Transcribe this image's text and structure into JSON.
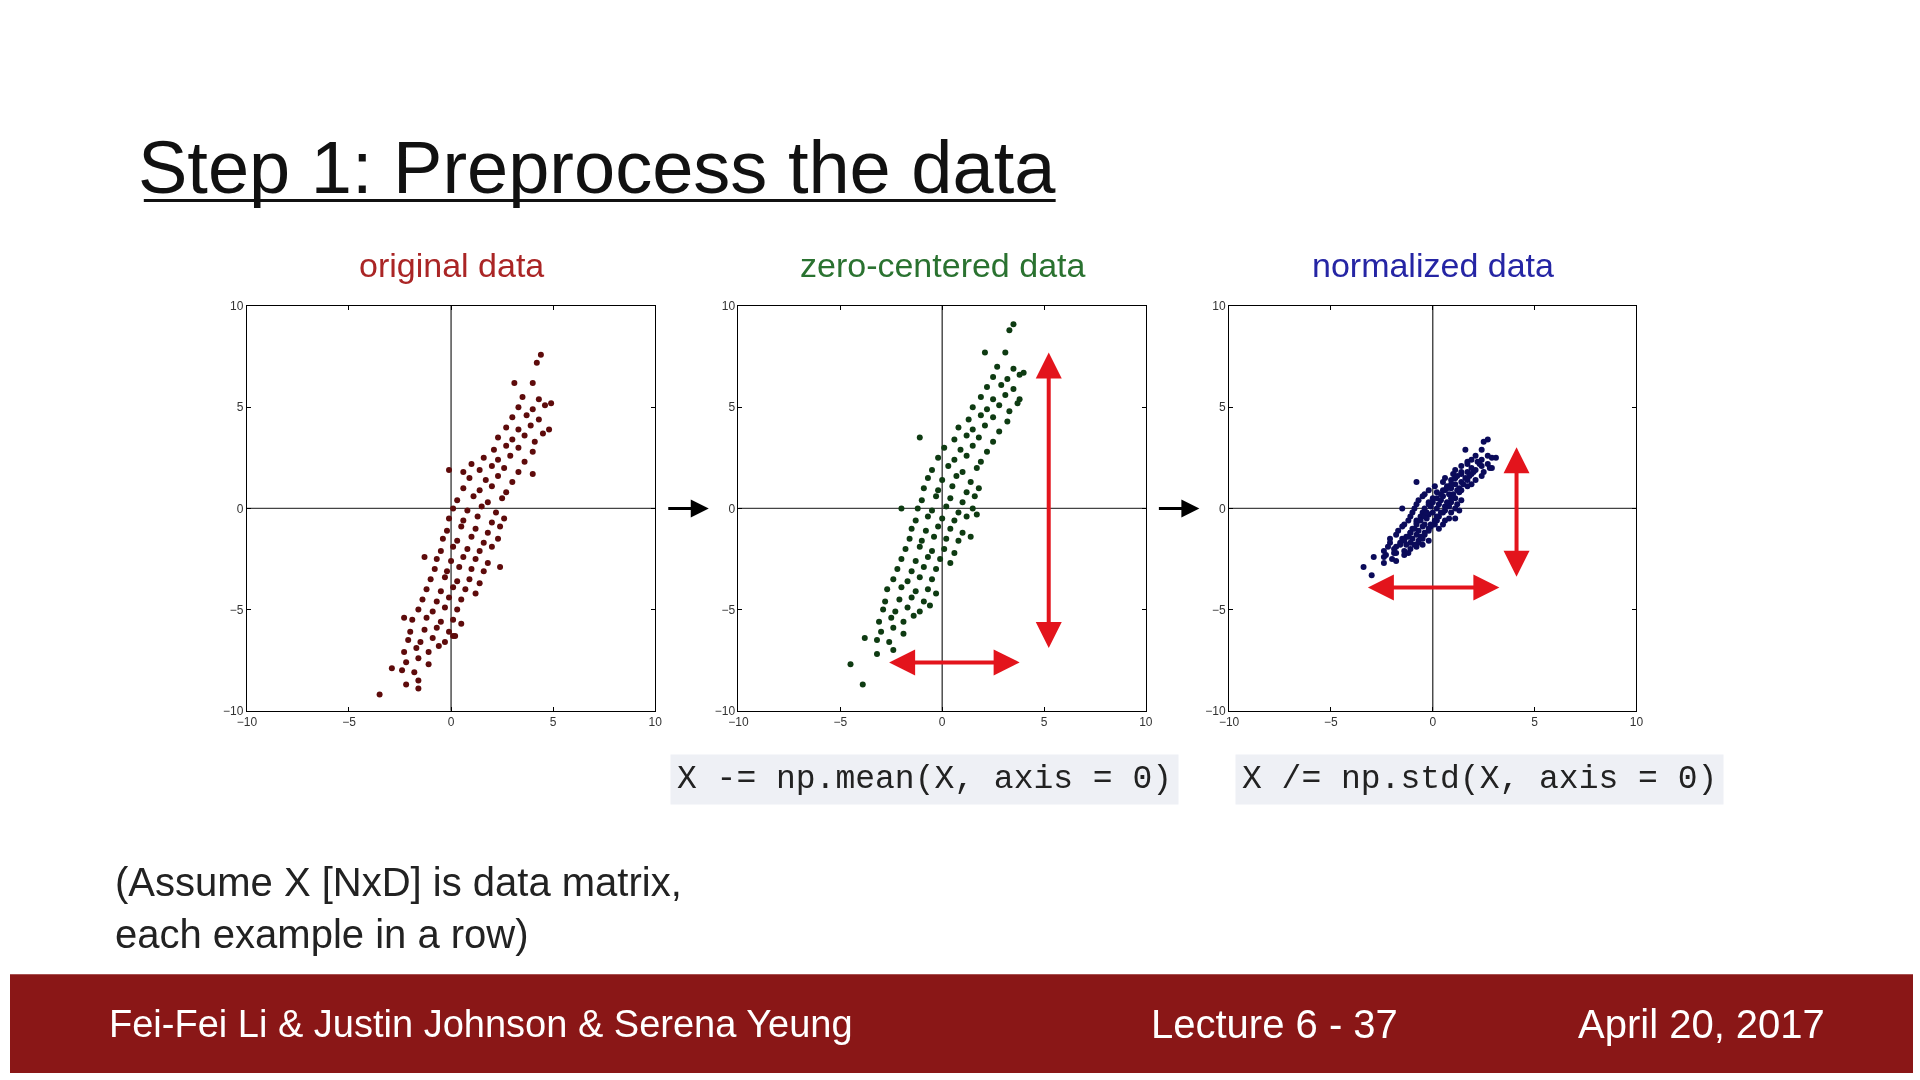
{
  "chart_data": [
    {
      "type": "other",
      "title": "Step 1: Preprocess the data"
    },
    {
      "type": "scatter",
      "title": "original data",
      "xlim": [
        -10,
        10
      ],
      "ylim": [
        -10,
        10
      ],
      "xticks": [
        -10,
        -5,
        0,
        5,
        10
      ],
      "yticks": [
        -10,
        -5,
        0,
        5,
        10
      ],
      "marker": "circle",
      "color": "#5e0b0b",
      "ref_lines": [
        {
          "axis": "x",
          "value": 0,
          "color": "#222222"
        },
        {
          "axis": "y",
          "value": 0,
          "color": "#444444"
        }
      ],
      "x": [
        4.4,
        4.2,
        3.1,
        4.0,
        4.9,
        4.8,
        -0.1,
        -3.5,
        -2.2,
        -2.9,
        -1.6,
        2.4,
        0.6,
        1.0,
        4.0,
        0.1,
        -2.3,
        -1.3,
        3.5,
        4.3,
        3.3,
        4.0,
        4.6,
        3.0,
        3.7,
        4.3,
        2.7,
        3.3,
        3.9,
        4.5,
        2.3,
        3.0,
        3.6,
        4.1,
        2.1,
        2.7,
        3.3,
        4.0,
        1.6,
        2.3,
        2.9,
        3.6,
        1.4,
        2.0,
        2.6,
        3.3,
        0.9,
        1.7,
        2.3,
        3.0,
        0.6,
        1.4,
        2.0,
        2.7,
        0.3,
        1.1,
        1.8,
        2.5,
        0.1,
        0.8,
        1.5,
        2.2,
        -0.1,
        0.6,
        1.3,
        2.0,
        2.6,
        -0.2,
        0.5,
        1.2,
        1.8,
        2.4,
        -0.4,
        0.3,
        1.0,
        1.6,
        2.3,
        -0.5,
        0.1,
        0.8,
        1.4,
        2.0,
        -0.7,
        0.0,
        0.6,
        1.2,
        1.8,
        -0.8,
        -0.2,
        0.4,
        1.0,
        1.6,
        -1.0,
        -0.3,
        0.3,
        0.9,
        1.4,
        -1.2,
        -0.5,
        0.1,
        0.7,
        1.2,
        -1.4,
        -0.7,
        -0.1,
        0.5,
        -1.6,
        -0.9,
        -0.3,
        0.3,
        -1.9,
        -1.2,
        -0.5,
        0.1,
        -2.0,
        -1.3,
        -0.7,
        -0.1,
        -2.1,
        -1.5,
        -0.9,
        -0.3,
        -2.3,
        -1.7,
        -1.1,
        -0.6,
        -2.2,
        -1.6,
        -1.1,
        -2.4,
        -1.8,
        -1.6,
        0.2,
        0.5
      ],
      "values": [
        7.6,
        7.2,
        6.2,
        6.2,
        5.2,
        3.9,
        1.9,
        -9.2,
        -8.7,
        -7.9,
        -8.9,
        -2.9,
        1.8,
        2.2,
        1.7,
        -6.3,
        -5.4,
        -2.4,
        5.5,
        5.4,
        5.0,
        4.9,
        5.1,
        4.5,
        4.6,
        4.4,
        4.0,
        3.9,
        4.1,
        3.7,
        3.5,
        3.4,
        3.6,
        3.3,
        2.9,
        3.1,
        3.0,
        2.8,
        2.5,
        2.4,
        2.6,
        2.3,
        1.9,
        2.1,
        2.0,
        1.8,
        1.5,
        1.4,
        1.6,
        1.3,
        1.0,
        0.9,
        1.1,
        0.8,
        0.4,
        0.6,
        0.3,
        0.5,
        0.0,
        -0.1,
        0.1,
        -0.2,
        -0.5,
        -0.6,
        -0.4,
        -0.7,
        -0.5,
        -1.1,
        -0.9,
        -1.0,
        -1.2,
        -0.9,
        -1.5,
        -1.6,
        -1.4,
        -1.7,
        -1.5,
        -2.1,
        -1.9,
        -2.0,
        -2.1,
        -1.9,
        -2.5,
        -2.6,
        -2.4,
        -2.5,
        -2.7,
        -3.0,
        -3.1,
        -2.9,
        -3.0,
        -3.1,
        -3.5,
        -3.4,
        -3.6,
        -3.5,
        -3.7,
        -4.0,
        -4.1,
        -3.9,
        -4.0,
        -4.2,
        -4.5,
        -4.6,
        -4.4,
        -4.5,
        -5.0,
        -5.1,
        -4.9,
        -5.0,
        -5.5,
        -5.4,
        -5.6,
        -5.5,
        -6.1,
        -6.0,
        -5.9,
        -6.1,
        -6.5,
        -6.6,
        -6.4,
        -6.6,
        -7.1,
        -6.9,
        -7.1,
        -6.8,
        -7.6,
        -7.4,
        -7.7,
        -8.0,
        -8.1,
        -8.5,
        -6.3,
        -5.7
      ]
    },
    {
      "type": "scatter",
      "title": "zero-centered data",
      "xlim": [
        -10,
        10
      ],
      "ylim": [
        -10,
        10
      ],
      "xticks": [
        -10,
        -5,
        0,
        5,
        10
      ],
      "yticks": [
        -10,
        -5,
        0,
        5,
        10
      ],
      "marker": "circle",
      "color": "#0e3b12",
      "ref_lines": [
        {
          "axis": "x",
          "value": 0,
          "color": "#222222"
        },
        {
          "axis": "y",
          "value": 0,
          "color": "#444444"
        }
      ],
      "annotations": [
        "X -= np.mean(X, axis = 0)"
      ],
      "x": [
        3.5,
        3.3,
        2.1,
        3.1,
        3.8,
        4.0,
        -1.1,
        -4.5,
        -3.9,
        -3.8,
        -3.2,
        1.4,
        -2.0,
        1.7,
        2.7,
        3.5,
        2.5,
        3.2,
        3.8,
        2.2,
        2.9,
        3.5,
        1.9,
        2.5,
        3.1,
        3.7,
        1.5,
        2.2,
        2.8,
        3.3,
        1.3,
        1.9,
        2.5,
        3.2,
        0.8,
        1.5,
        2.1,
        2.8,
        0.6,
        1.2,
        1.8,
        2.5,
        0.1,
        0.9,
        1.5,
        2.2,
        -0.2,
        0.6,
        1.2,
        1.9,
        -0.5,
        0.3,
        1.0,
        1.7,
        -0.7,
        0.0,
        0.7,
        1.4,
        -0.9,
        -0.2,
        0.5,
        1.2,
        1.8,
        -1.0,
        -0.3,
        0.4,
        1.0,
        1.6,
        -1.2,
        -0.5,
        0.2,
        0.8,
        1.5,
        -1.3,
        -0.7,
        0.0,
        0.6,
        1.2,
        -1.5,
        -0.8,
        -0.2,
        0.4,
        1.0,
        -1.6,
        -1.0,
        -0.4,
        0.2,
        0.8,
        -1.8,
        -1.1,
        -0.5,
        0.1,
        0.6,
        -2.0,
        -1.3,
        -0.7,
        -0.1,
        0.4,
        -2.2,
        -1.5,
        -0.9,
        -0.3,
        -2.4,
        -1.7,
        -1.1,
        -0.5,
        -2.7,
        -2.0,
        -1.3,
        -0.7,
        -2.8,
        -2.1,
        -1.5,
        -0.9,
        -2.9,
        -2.3,
        -1.7,
        -1.1,
        -3.1,
        -2.5,
        -1.9,
        -1.4,
        -3.0,
        -2.4,
        -1.9,
        -3.2,
        -2.6,
        -2.4,
        -0.6,
        -0.3
      ],
      "values": [
        9.1,
        8.8,
        7.7,
        7.7,
        5.4,
        6.7,
        3.5,
        -7.7,
        -8.7,
        -6.4,
        -7.2,
        -1.4,
        0.0,
        -0.3,
        7.0,
        6.9,
        6.5,
        6.4,
        6.6,
        6.0,
        6.1,
        5.9,
        5.5,
        5.4,
        5.6,
        5.2,
        5.0,
        4.9,
        5.1,
        4.8,
        4.4,
        4.6,
        4.5,
        4.3,
        4.0,
        3.9,
        4.1,
        3.8,
        3.4,
        3.6,
        3.5,
        3.3,
        3.0,
        2.9,
        3.1,
        2.8,
        2.5,
        2.4,
        2.6,
        2.3,
        1.9,
        2.1,
        1.8,
        2.0,
        1.5,
        1.4,
        1.6,
        1.3,
        1.0,
        0.9,
        1.1,
        0.8,
        1.0,
        0.4,
        0.6,
        0.5,
        0.3,
        0.6,
        0.0,
        -0.1,
        0.1,
        -0.2,
        0.0,
        -0.6,
        -0.4,
        -0.5,
        -0.6,
        -0.4,
        -1.0,
        -1.1,
        -0.9,
        -1.0,
        -1.2,
        -1.5,
        -1.6,
        -1.4,
        -1.5,
        -1.6,
        -2.0,
        -1.9,
        -2.1,
        -2.0,
        -2.2,
        -2.5,
        -2.6,
        -2.4,
        -2.5,
        -2.7,
        -3.0,
        -3.1,
        -2.9,
        -3.0,
        -3.5,
        -3.6,
        -3.4,
        -3.5,
        -4.0,
        -3.9,
        -4.1,
        -4.0,
        -4.6,
        -4.5,
        -4.4,
        -4.6,
        -5.0,
        -5.1,
        -4.9,
        -5.1,
        -5.6,
        -5.4,
        -5.6,
        -5.3,
        -6.1,
        -5.9,
        -6.2,
        -6.5,
        -6.6,
        -7.0,
        -4.8,
        -4.2
      ]
    },
    {
      "type": "scatter",
      "title": "normalized data",
      "xlim": [
        -10,
        10
      ],
      "ylim": [
        -10,
        10
      ],
      "xticks": [
        -10,
        -5,
        0,
        5,
        10
      ],
      "yticks": [
        -10,
        -5,
        0,
        5,
        10
      ],
      "marker": "circle",
      "color": "#0b0b5a",
      "ref_lines": [
        {
          "axis": "x",
          "value": 0,
          "color": "#222222"
        },
        {
          "axis": "y",
          "value": 0,
          "color": "#444444"
        }
      ],
      "annotations": [
        "X /= np.std(X, axis = 0)"
      ],
      "x": [
        2.7,
        2.5,
        1.6,
        2.4,
        2.9,
        3.1,
        -0.8,
        -3.4,
        -3.0,
        -2.9,
        -2.4,
        1.1,
        -1.5,
        1.3,
        2.1,
        2.7,
        1.9,
        2.4,
        2.9,
        1.7,
        2.2,
        2.7,
        1.4,
        1.9,
        2.4,
        2.8,
        1.1,
        1.7,
        2.1,
        2.5,
        1.0,
        1.4,
        1.9,
        2.4,
        0.6,
        1.1,
        1.6,
        2.1,
        0.5,
        0.9,
        1.4,
        1.9,
        0.1,
        0.7,
        1.1,
        1.7,
        -0.2,
        0.5,
        0.9,
        1.4,
        -0.4,
        0.2,
        0.8,
        1.3,
        -0.5,
        0.0,
        0.5,
        1.1,
        -0.7,
        -0.2,
        0.4,
        0.9,
        1.4,
        -0.8,
        -0.2,
        0.3,
        0.8,
        1.2,
        -0.9,
        -0.4,
        0.2,
        0.6,
        1.1,
        -1.0,
        -0.5,
        0.0,
        0.5,
        0.9,
        -1.1,
        -0.6,
        -0.2,
        0.3,
        0.8,
        -1.2,
        -0.8,
        -0.3,
        0.2,
        0.6,
        -1.4,
        -0.8,
        -0.4,
        0.1,
        0.5,
        -1.5,
        -1.0,
        -0.5,
        -0.1,
        0.3,
        -1.7,
        -1.1,
        -0.7,
        -0.2,
        -1.8,
        -1.3,
        -0.8,
        -0.4,
        -2.1,
        -1.5,
        -1.0,
        -0.5,
        -2.1,
        -1.6,
        -1.1,
        -0.7,
        -2.2,
        -1.8,
        -1.3,
        -0.8,
        -2.4,
        -1.9,
        -1.4,
        -1.1,
        -2.3,
        -1.8,
        -1.4,
        -2.4,
        -2.0,
        -1.8,
        -0.5,
        -0.2,
        -1.9,
        -1.2,
        -1.6,
        -0.9,
        -1.4,
        -0.7,
        -1.2,
        -0.6,
        -1.1,
        -0.4,
        -0.9,
        -0.2,
        -0.8,
        -0.1,
        -0.6,
        0.1,
        -0.4,
        0.2,
        -0.3,
        0.4,
        -0.1,
        0.6,
        0.0,
        0.7,
        0.2,
        0.9,
        0.4,
        1.0,
        0.6,
        1.2,
        0.7,
        1.3,
        0.9,
        1.5,
        1.1,
        1.7,
        1.2,
        1.8,
        1.4,
        2.0,
        1.7,
        2.3
      ],
      "values": [
        3.4,
        3.3,
        2.9,
        2.9,
        2.0,
        2.5,
        1.3,
        -2.9,
        -3.3,
        -2.4,
        -2.7,
        -0.5,
        0.0,
        -0.1,
        2.6,
        2.6,
        2.4,
        2.4,
        2.5,
        2.3,
        2.3,
        2.2,
        2.1,
        2.0,
        2.1,
        2.0,
        1.9,
        1.8,
        1.9,
        1.8,
        1.7,
        1.7,
        1.7,
        1.6,
        1.5,
        1.5,
        1.5,
        1.4,
        1.3,
        1.4,
        1.3,
        1.2,
        1.1,
        1.1,
        1.2,
        1.1,
        0.9,
        0.9,
        1.0,
        0.9,
        0.7,
        0.8,
        0.7,
        0.8,
        0.6,
        0.5,
        0.6,
        0.5,
        0.4,
        0.3,
        0.4,
        0.3,
        0.4,
        0.2,
        0.2,
        0.2,
        0.1,
        0.2,
        0.0,
        0.0,
        0.0,
        -0.1,
        0.0,
        -0.2,
        -0.2,
        -0.2,
        -0.2,
        -0.2,
        -0.4,
        -0.4,
        -0.3,
        -0.4,
        -0.5,
        -0.6,
        -0.6,
        -0.5,
        -0.6,
        -0.6,
        -0.8,
        -0.7,
        -0.8,
        -0.8,
        -0.8,
        -0.9,
        -1.0,
        -0.9,
        -0.9,
        -1.0,
        -1.1,
        -1.2,
        -1.1,
        -1.1,
        -1.3,
        -1.4,
        -1.3,
        -1.3,
        -1.5,
        -1.5,
        -1.5,
        -1.5,
        -1.7,
        -1.7,
        -1.7,
        -1.7,
        -1.9,
        -1.9,
        -1.8,
        -1.9,
        -2.1,
        -2.0,
        -2.1,
        -2.0,
        -2.3,
        -2.2,
        -2.3,
        -2.4,
        -2.5,
        -2.6,
        -1.8,
        -1.6,
        -2.2,
        -2.2,
        -1.8,
        -1.8,
        -1.6,
        -1.6,
        -1.4,
        -1.4,
        -1.2,
        -1.2,
        -1.0,
        -1.0,
        -0.8,
        -0.8,
        -0.6,
        -0.6,
        -0.4,
        -0.4,
        -0.2,
        -0.2,
        0.1,
        0.1,
        0.3,
        0.3,
        0.5,
        0.5,
        0.7,
        0.7,
        0.9,
        0.9,
        1.0,
        1.0,
        1.2,
        1.2,
        1.5,
        1.4,
        1.6,
        1.6,
        1.8,
        1.8,
        2.2,
        2.2
      ]
    },
    {
      "type": "other",
      "annotations": [
        "(Assume X [NxD] is data matrix, each example in a row)",
        "Fei-Fei Li & Justin Johnson & Serena Yeung",
        "Lecture 6 - 37",
        "April 20, 2017"
      ]
    }
  ]
}
